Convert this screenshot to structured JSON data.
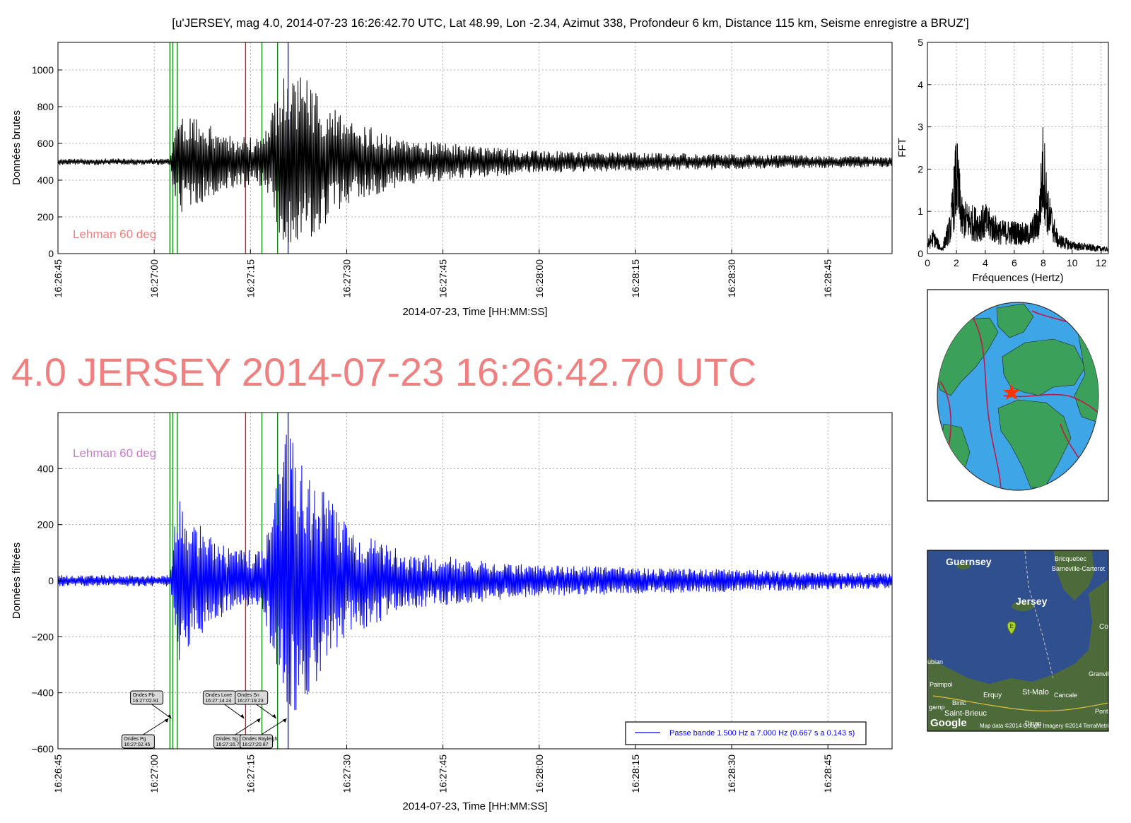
{
  "suptitle": "[u'JERSEY, mag 4.0, 2014-07-23 16:26:42.70 UTC, Lat 48.99, Lon -2.34, Azimut 338, Profondeur 6 km, Distance 115 km, Seisme enregistre a BRUZ']",
  "event_title": "4.0 JERSEY 2014-07-23 16:26:42.70 UTC",
  "colors": {
    "raw_trace": "#000000",
    "filtered_trace": "#0000ff",
    "title_salmon": "#f08080",
    "lehman_top": "#f08080",
    "lehman_bottom": "#c77dc9",
    "p_lines": "#008000",
    "s_lines": "#ff0000",
    "surface_line": "#0000ff",
    "ocean": "#3ea6e6",
    "land": "#3aa05a",
    "plates": "#c0184a",
    "map_sea": "#2f4f8f",
    "map_land": "#4d6b3a"
  },
  "chart_data": [
    {
      "type": "line",
      "name": "raw",
      "title": "",
      "xlabel": "2014-07-23, Time [HH:MM:SS]",
      "ylabel": "Données brutes",
      "xlim": [
        "16:26:45",
        "16:28:55"
      ],
      "ylim": [
        0,
        1150
      ],
      "yticks": [
        0,
        200,
        400,
        600,
        800,
        1000
      ],
      "xticks": [
        "16:26:45",
        "16:27:00",
        "16:27:15",
        "16:27:30",
        "16:27:45",
        "16:28:00",
        "16:28:15",
        "16:28:30",
        "16:28:45"
      ],
      "grid": true,
      "annotation": "Lehman 60 deg",
      "baseline": 500,
      "noise_amplitude": 18,
      "envelope": [
        {
          "t": "16:27:02.5",
          "amp": 20
        },
        {
          "t": "16:27:03.5",
          "amp": 300
        },
        {
          "t": "16:27:07",
          "amp": 230
        },
        {
          "t": "16:27:12",
          "amp": 150
        },
        {
          "t": "16:27:17",
          "amp": 130
        },
        {
          "t": "16:27:20.5",
          "amp": 500
        },
        {
          "t": "16:27:24",
          "amp": 450
        },
        {
          "t": "16:27:30",
          "amp": 230
        },
        {
          "t": "16:27:40",
          "amp": 120
        },
        {
          "t": "16:28:00",
          "amp": 60
        },
        {
          "t": "16:28:55",
          "amp": 28
        }
      ]
    },
    {
      "type": "line",
      "name": "filtered",
      "title": "",
      "xlabel": "2014-07-23, Time [HH:MM:SS]",
      "ylabel": "Données filtrées",
      "xlim": [
        "16:26:45",
        "16:28:55"
      ],
      "ylim": [
        -600,
        600
      ],
      "yticks": [
        -600,
        -400,
        -200,
        0,
        200,
        400
      ],
      "xticks": [
        "16:26:45",
        "16:27:00",
        "16:27:15",
        "16:27:30",
        "16:27:45",
        "16:28:00",
        "16:28:15",
        "16:28:30",
        "16:28:45"
      ],
      "grid": true,
      "annotation": "Lehman 60 deg",
      "baseline": 0,
      "noise_amplitude": 20,
      "legend": {
        "position": "lower-right",
        "entries": [
          "Passe bande 1.500 Hz a 7.000 Hz (0.667 s a 0.143 s)"
        ]
      },
      "envelope": [
        {
          "t": "16:27:02.5",
          "amp": 20
        },
        {
          "t": "16:27:03.5",
          "amp": 300
        },
        {
          "t": "16:27:07",
          "amp": 200
        },
        {
          "t": "16:27:12",
          "amp": 110
        },
        {
          "t": "16:27:17",
          "amp": 110
        },
        {
          "t": "16:27:20.5",
          "amp": 530
        },
        {
          "t": "16:27:24",
          "amp": 420
        },
        {
          "t": "16:27:30",
          "amp": 200
        },
        {
          "t": "16:27:40",
          "amp": 100
        },
        {
          "t": "16:28:00",
          "amp": 55
        },
        {
          "t": "16:28:55",
          "amp": 28
        }
      ],
      "phase_annotations": [
        {
          "label": "Ondes Pb",
          "time": "16:27:02.91",
          "row": "upper"
        },
        {
          "label": "Ondes Pg",
          "time": "16:27:02.45",
          "row": "lower"
        },
        {
          "label": "Ondes Love",
          "time": "16:27:14.24",
          "row": "upper"
        },
        {
          "label": "Ondes Sn",
          "time": "16:27:19.23",
          "row": "upper"
        },
        {
          "label": "Ondes Sg",
          "time": "16:27:16.79",
          "row": "lower"
        },
        {
          "label": "Ondes Rayleigh",
          "time": "16:27:20.87",
          "row": "lower"
        }
      ]
    },
    {
      "type": "line",
      "name": "fft",
      "title": "",
      "xlabel": "Fréquences (Hertz)",
      "ylabel": "FFT",
      "xlim": [
        0,
        12.5
      ],
      "ylim": [
        0,
        5
      ],
      "xticks": [
        0,
        2,
        4,
        6,
        8,
        10,
        12
      ],
      "yticks": [
        0,
        1,
        2,
        3,
        4,
        5
      ],
      "grid": true,
      "envelope": [
        {
          "f": 0.0,
          "amp": 0.3
        },
        {
          "f": 0.4,
          "amp": 0.6
        },
        {
          "f": 1.0,
          "amp": 0.15
        },
        {
          "f": 1.6,
          "amp": 1.0
        },
        {
          "f": 2.0,
          "amp": 2.9
        },
        {
          "f": 2.4,
          "amp": 1.3
        },
        {
          "f": 3.5,
          "amp": 1.1
        },
        {
          "f": 4.0,
          "amp": 1.2
        },
        {
          "f": 5.0,
          "amp": 0.8
        },
        {
          "f": 6.0,
          "amp": 0.8
        },
        {
          "f": 7.0,
          "amp": 0.7
        },
        {
          "f": 7.7,
          "amp": 1.2
        },
        {
          "f": 8.0,
          "amp": 3.3
        },
        {
          "f": 8.3,
          "amp": 1.6
        },
        {
          "f": 9.0,
          "amp": 0.5
        },
        {
          "f": 10.0,
          "amp": 0.3
        },
        {
          "f": 12.5,
          "amp": 0.15
        }
      ]
    }
  ],
  "phase_lines": {
    "green": [
      "16:27:02.45",
      "16:27:02.91",
      "16:27:03.6",
      "16:27:16.79",
      "16:27:19.23"
    ],
    "red": [
      "16:27:14.24"
    ],
    "blue": [
      "16:27:20.87"
    ]
  },
  "locator_map": {
    "labels": [
      "Guernsey",
      "Bricquebec",
      "Barneville-Carteret",
      "Jersey",
      "Co",
      "ubian",
      "Granvil",
      "Paimpol",
      "Erquy",
      "St-Malo",
      "Cancale",
      "Binic",
      "Saint-Brieuc",
      "Pont",
      "gamp",
      "Dinan"
    ],
    "marker_letter": "E",
    "attribution": "Map data ©2014 Google Imagery ©2014 TerraMetrics",
    "logo": "Google"
  }
}
